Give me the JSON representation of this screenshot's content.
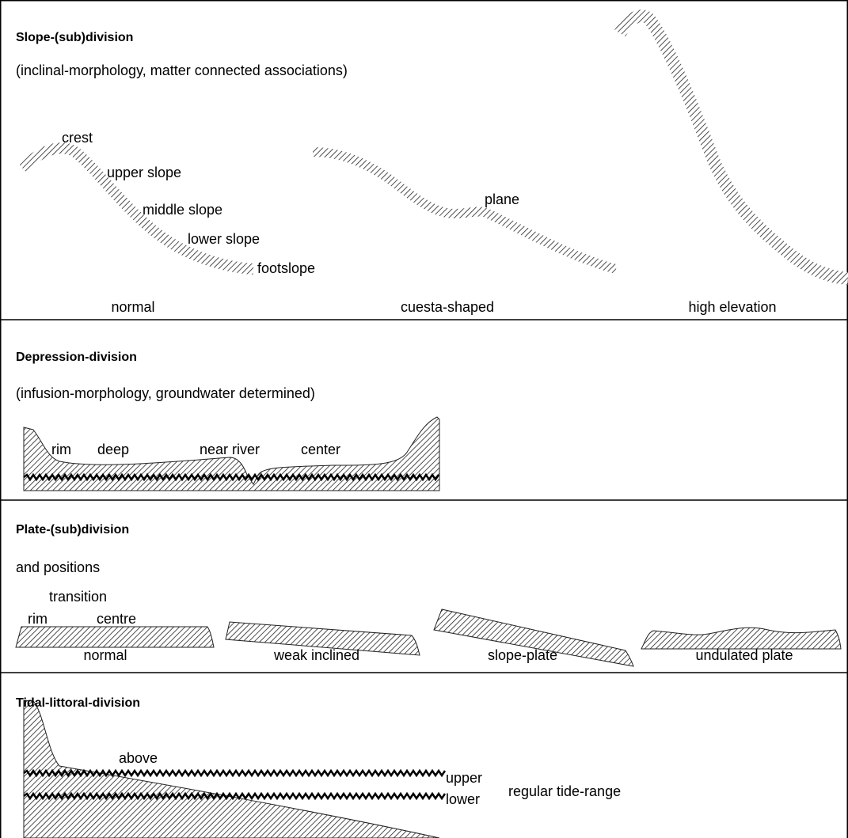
{
  "sections": [
    {
      "title": "Slope-(sub)division",
      "subtitle": "(inclinal-morphology, matter connected associations)",
      "labels": [
        "crest",
        "upper slope",
        "middle slope",
        "lower slope",
        "footslope",
        "plane"
      ],
      "captions": [
        "normal",
        "cuesta-shaped",
        "high elevation"
      ]
    },
    {
      "title": "Depression-division",
      "subtitle": "(infusion-morphology, groundwater determined)",
      "labels": [
        "rim",
        "deep",
        "near river",
        "center"
      ]
    },
    {
      "title": "Plate-(sub)division",
      "subtitle": "and positions",
      "labels": [
        "transition",
        "rim",
        "centre"
      ],
      "captions": [
        "normal",
        "weak inclined",
        "slope-plate",
        "undulated plate"
      ]
    },
    {
      "title": "Tidal-littoral-division",
      "labels": [
        "above",
        "upper",
        "lower",
        "regular tide-range"
      ]
    }
  ]
}
